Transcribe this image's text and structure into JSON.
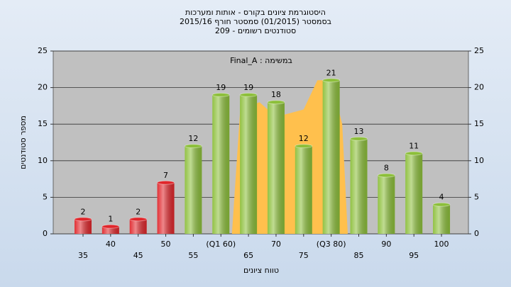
{
  "chart_data": {
    "type": "bar",
    "title": "היסטוגרמת ציונים בקורס - אותות ומערכות",
    "subtitle": "בסמסטר  (01/2015)  סמסטר חורף 2015/16",
    "subtitle2": "סטודנטים רשומים - 209",
    "annotation": "במשימה : Final_A",
    "x_label": "טווח ציונים",
    "y_label": "מספר סטודנטים",
    "categories": [
      "35",
      "40",
      "45",
      "50",
      "55",
      "(Q1 60)",
      "65",
      "70",
      "75",
      "(Q3 80)",
      "85",
      "90",
      "95",
      "100"
    ],
    "values": [
      2,
      1,
      2,
      7,
      12,
      19,
      19,
      18,
      12,
      21,
      13,
      8,
      11,
      4
    ],
    "colors": [
      "#e0262b",
      "#e0262b",
      "#e0262b",
      "#e0262b",
      "#8cbf3a",
      "#8cbf3a",
      "#8cbf3a",
      "#8cbf3a",
      "#8cbf3a",
      "#8cbf3a",
      "#8cbf3a",
      "#8cbf3a",
      "#8cbf3a",
      "#8cbf3a"
    ],
    "shaded_area": {
      "color": "#ffc04d",
      "x": [
        62,
        63.5,
        67,
        70,
        72.5,
        75,
        77.5,
        80,
        82,
        83
      ],
      "values": [
        0,
        17,
        18,
        16,
        16.5,
        17,
        21,
        21,
        15,
        0
      ]
    },
    "ylim": [
      0,
      25
    ],
    "yticks": [
      0,
      5,
      10,
      15,
      20,
      25
    ],
    "y2lim": [
      0,
      25
    ],
    "y2ticks": [
      0,
      5,
      10,
      15,
      20,
      25
    ],
    "grid": true
  }
}
